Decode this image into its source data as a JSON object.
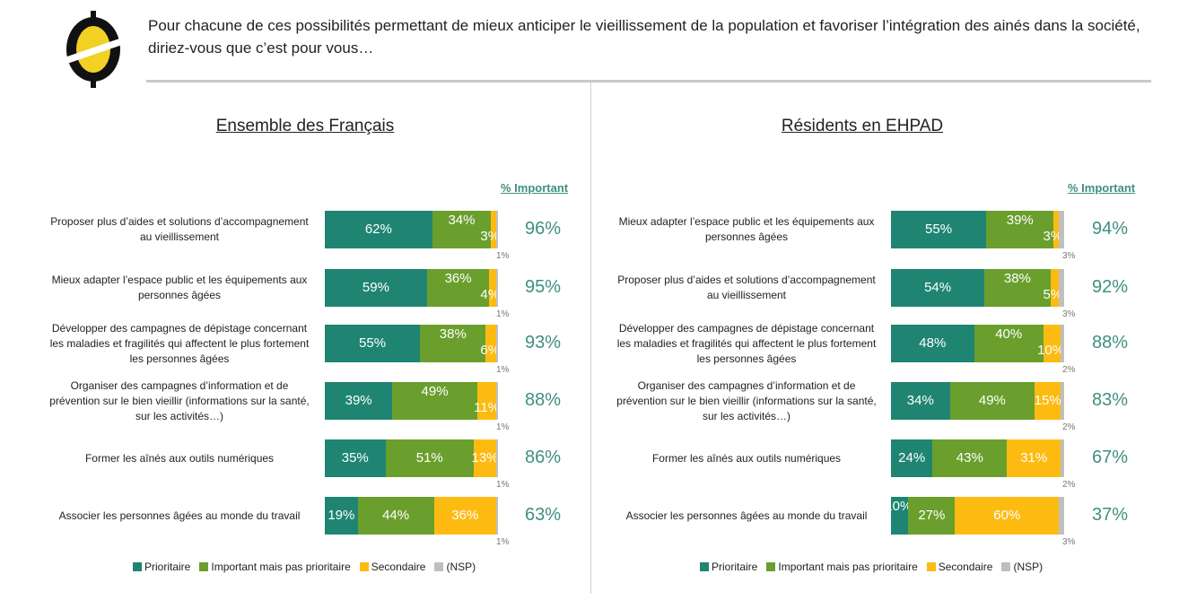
{
  "question": "Pour chacune de ces possibilités permettant de mieux anticiper le vieillissement de la population et favoriser l’intégration des ainés dans la société, diriez-vous que c’est pour vous…",
  "colors": {
    "Prioritaire": "#1f8572",
    "Important mais pas prioritaire": "#6a9f2d",
    "Secondaire": "#fdbb12",
    "(NSP)": "#bfbfbf",
    "important_text": "#3f8f80"
  },
  "chart_data": [
    {
      "type": "bar",
      "orientation": "horizontal",
      "stacked": true,
      "title": "Ensemble des Français",
      "important_header": "% Important",
      "categories": [
        "Proposer plus d’aides et solutions d’accompagnement au vieillissement",
        "Mieux adapter l’espace public et les équipements aux personnes âgées",
        "Développer des campagnes de dépistage concernant les maladies et fragilités qui affectent le plus fortement les personnes âgées",
        "Organiser des campagnes d’information et de prévention sur le bien vieillir  (informations sur la santé, sur les activités…)",
        "Former les aînés aux outils numériques",
        "Associer les personnes âgées au monde du travail"
      ],
      "series": [
        {
          "name": "Prioritaire",
          "values": [
            62,
            59,
            55,
            39,
            35,
            19
          ]
        },
        {
          "name": "Important mais pas prioritaire",
          "values": [
            34,
            36,
            38,
            49,
            51,
            44
          ]
        },
        {
          "name": "Secondaire",
          "values": [
            3,
            4,
            6,
            11,
            13,
            36
          ]
        },
        {
          "name": "(NSP)",
          "values": [
            1,
            1,
            1,
            1,
            1,
            1
          ]
        }
      ],
      "important": [
        "96%",
        "95%",
        "93%",
        "88%",
        "86%",
        "63%"
      ],
      "xlim": [
        0,
        100
      ],
      "legend": "bottom"
    },
    {
      "type": "bar",
      "orientation": "horizontal",
      "stacked": true,
      "title": "Résidents en EHPAD",
      "important_header": "% Important",
      "categories": [
        "Mieux adapter l’espace public et les équipements aux personnes âgées",
        "Proposer plus d’aides et solutions d’accompagnement au vieillissement",
        "Développer des campagnes de dépistage concernant les maladies et fragilités qui affectent le plus fortement les personnes âgées",
        "Organiser des campagnes d’information et de prévention sur le bien vieillir  (informations sur la santé, sur les activités…)",
        "Former les aînés aux outils numériques",
        "Associer les personnes âgées au monde du travail"
      ],
      "series": [
        {
          "name": "Prioritaire",
          "values": [
            55,
            54,
            48,
            34,
            24,
            10
          ]
        },
        {
          "name": "Important mais pas prioritaire",
          "values": [
            39,
            38,
            40,
            49,
            43,
            27
          ]
        },
        {
          "name": "Secondaire",
          "values": [
            3,
            5,
            10,
            15,
            31,
            60
          ]
        },
        {
          "name": "(NSP)",
          "values": [
            3,
            3,
            2,
            2,
            2,
            3
          ]
        }
      ],
      "important": [
        "94%",
        "92%",
        "88%",
        "83%",
        "67%",
        "37%"
      ],
      "xlim": [
        0,
        100
      ],
      "legend": "bottom"
    }
  ]
}
